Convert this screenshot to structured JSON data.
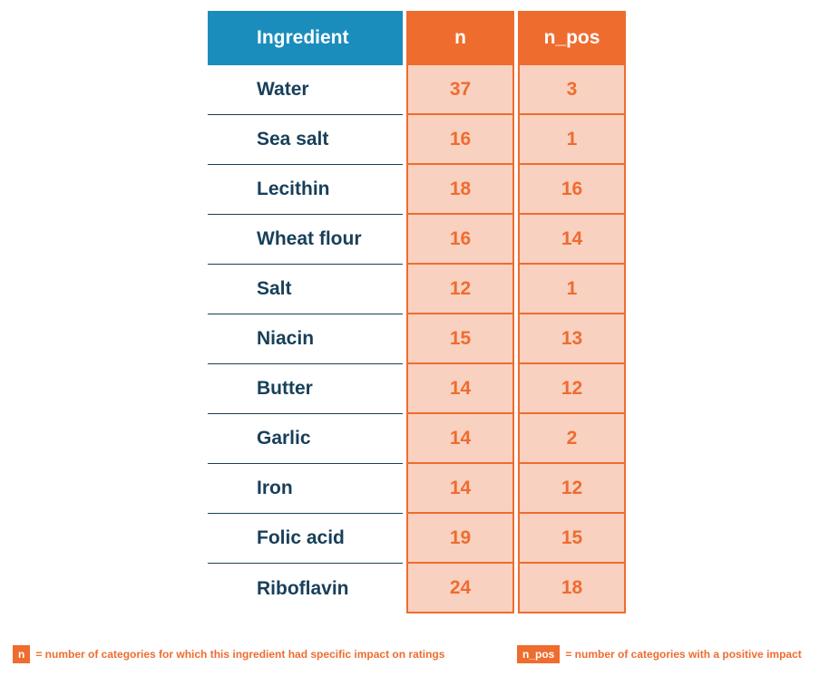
{
  "chart_data": {
    "type": "table",
    "columns": [
      "Ingredient",
      "n",
      "n_pos"
    ],
    "rows": [
      {
        "ingredient": "Water",
        "n": 37,
        "n_pos": 3
      },
      {
        "ingredient": "Sea salt",
        "n": 16,
        "n_pos": 1
      },
      {
        "ingredient": "Lecithin",
        "n": 18,
        "n_pos": 16
      },
      {
        "ingredient": "Wheat flour",
        "n": 16,
        "n_pos": 14
      },
      {
        "ingredient": "Salt",
        "n": 12,
        "n_pos": 1
      },
      {
        "ingredient": "Niacin",
        "n": 15,
        "n_pos": 13
      },
      {
        "ingredient": "Butter",
        "n": 14,
        "n_pos": 12
      },
      {
        "ingredient": "Garlic",
        "n": 14,
        "n_pos": 2
      },
      {
        "ingredient": "Iron",
        "n": 14,
        "n_pos": 12
      },
      {
        "ingredient": "Folic acid",
        "n": 19,
        "n_pos": 15
      },
      {
        "ingredient": "Riboflavin",
        "n": 24,
        "n_pos": 18
      }
    ],
    "colors": {
      "ingredient_header": "#1a8dbd",
      "numeric_header": "#ef6c2f",
      "numeric_cell_fill": "#f9d1c0",
      "numeric_text": "#ef6c2f",
      "ingredient_text": "#183f5a"
    }
  },
  "legend": [
    {
      "key": "n",
      "text": "= number of categories for which this ingredient had specific impact on ratings"
    },
    {
      "key": "n_pos",
      "text": "= number of categories with a positive impact"
    }
  ]
}
